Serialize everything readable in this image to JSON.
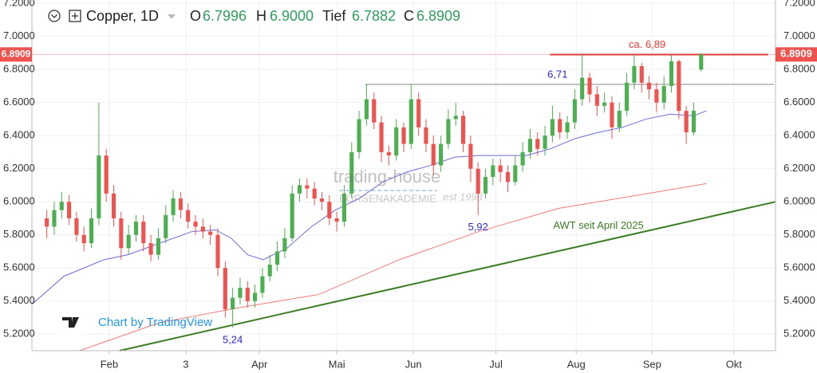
{
  "chart_data": {
    "type": "candlestick",
    "header": {
      "symbol": "Copper, 1D",
      "ohlc_names": [
        "O",
        "H",
        "Tief",
        "C"
      ]
    },
    "last_bar_labels": {
      "open": "6.7996",
      "high": "6.9000",
      "low": "6.7882",
      "close": "6.8909"
    },
    "watermark": {
      "brand": "trading-house",
      "sub": "BÖRSENAKADEMIE",
      "since": "est 1998"
    },
    "credit": "Chart by TradingView",
    "up_color": "#4caf50",
    "down_color": "#ef5350",
    "x": [
      2,
      3,
      4,
      5,
      6,
      7,
      8,
      9,
      10,
      11,
      12,
      13,
      14,
      15,
      16,
      17,
      18,
      19,
      20,
      21,
      22,
      23,
      24,
      25,
      26,
      27,
      28,
      29,
      30,
      31,
      32,
      33,
      34,
      35,
      36,
      37,
      38,
      39,
      40,
      41,
      42,
      43,
      44,
      45,
      46,
      47,
      48,
      49,
      50,
      51,
      52,
      53,
      54,
      55,
      56,
      57,
      58,
      59,
      60,
      61,
      62,
      63,
      64,
      65,
      66,
      67,
      68,
      69,
      70,
      71,
      72,
      73,
      74,
      75,
      76,
      77,
      78,
      79,
      80,
      81,
      82,
      83,
      84,
      85,
      86,
      87,
      88,
      89,
      90
    ],
    "open": [
      5.9,
      5.85,
      5.95,
      6.0,
      5.9,
      5.8,
      5.75,
      5.9,
      6.28,
      6.05,
      5.9,
      5.72,
      5.8,
      5.88,
      5.75,
      5.68,
      5.78,
      5.92,
      6.02,
      5.95,
      5.88,
      5.85,
      5.82,
      5.8,
      5.6,
      5.35,
      5.42,
      5.48,
      5.4,
      5.45,
      5.55,
      5.62,
      5.7,
      5.78,
      6.05,
      6.1,
      6.08,
      6.02,
      6.0,
      5.9,
      5.88,
      6.05,
      6.3,
      6.5,
      6.62,
      6.48,
      6.3,
      6.28,
      6.45,
      6.35,
      6.62,
      6.45,
      6.35,
      6.22,
      6.35,
      6.5,
      6.52,
      6.35,
      6.2,
      6.05,
      6.15,
      6.22,
      6.18,
      6.12,
      6.22,
      6.3,
      6.38,
      6.32,
      6.4,
      6.5,
      6.42,
      6.48,
      6.62,
      6.75,
      6.65,
      6.58,
      6.6,
      6.45,
      6.55,
      6.72,
      6.82,
      6.72,
      6.68,
      6.6,
      6.7,
      6.85,
      6.55,
      6.42,
      6.7996
    ],
    "high": [
      5.95,
      6.0,
      6.06,
      6.04,
      5.94,
      5.85,
      5.96,
      6.6,
      6.32,
      6.1,
      5.94,
      5.86,
      5.92,
      5.92,
      5.8,
      5.84,
      5.98,
      6.07,
      6.06,
      5.99,
      5.92,
      5.9,
      5.86,
      5.84,
      5.64,
      5.48,
      5.54,
      5.52,
      5.5,
      5.6,
      5.68,
      5.76,
      5.84,
      6.1,
      6.14,
      6.14,
      6.12,
      6.06,
      6.04,
      5.94,
      6.1,
      6.36,
      6.55,
      6.71,
      6.66,
      6.52,
      6.34,
      6.5,
      6.48,
      6.71,
      6.66,
      6.5,
      6.4,
      6.4,
      6.56,
      6.6,
      6.55,
      6.4,
      6.24,
      6.2,
      6.26,
      6.26,
      6.22,
      6.28,
      6.36,
      6.44,
      6.42,
      6.46,
      6.58,
      6.54,
      6.52,
      6.68,
      6.89,
      6.78,
      6.7,
      6.66,
      6.64,
      6.6,
      6.78,
      6.89,
      6.84,
      6.76,
      6.72,
      6.76,
      6.89,
      6.86,
      6.58,
      6.6,
      6.9
    ],
    "low": [
      5.78,
      5.8,
      5.9,
      5.86,
      5.76,
      5.7,
      5.72,
      5.86,
      6.0,
      5.85,
      5.65,
      5.68,
      5.76,
      5.7,
      5.64,
      5.65,
      5.75,
      5.88,
      5.9,
      5.84,
      5.8,
      5.78,
      5.74,
      5.55,
      5.3,
      5.24,
      5.38,
      5.36,
      5.36,
      5.42,
      5.52,
      5.58,
      5.66,
      5.76,
      6.0,
      6.02,
      5.98,
      5.95,
      5.86,
      5.82,
      5.85,
      6.02,
      6.26,
      6.46,
      6.44,
      6.24,
      6.22,
      6.25,
      6.3,
      6.32,
      6.4,
      6.3,
      6.16,
      6.18,
      6.32,
      6.46,
      6.3,
      6.12,
      5.92,
      6.02,
      6.1,
      6.12,
      6.06,
      6.1,
      6.18,
      6.26,
      6.28,
      6.28,
      6.36,
      6.38,
      6.38,
      6.44,
      6.58,
      6.6,
      6.52,
      6.54,
      6.38,
      6.42,
      6.52,
      6.68,
      6.66,
      6.62,
      6.54,
      6.56,
      6.66,
      6.5,
      6.35,
      6.4,
      6.7882
    ],
    "close": [
      5.85,
      5.95,
      6.0,
      5.9,
      5.8,
      5.75,
      5.9,
      6.28,
      6.05,
      5.9,
      5.72,
      5.8,
      5.88,
      5.75,
      5.68,
      5.78,
      5.92,
      6.02,
      5.95,
      5.88,
      5.85,
      5.82,
      5.8,
      5.6,
      5.35,
      5.42,
      5.48,
      5.4,
      5.45,
      5.55,
      5.62,
      5.7,
      5.78,
      6.05,
      6.1,
      6.08,
      6.02,
      6.0,
      5.9,
      5.88,
      6.05,
      6.3,
      6.5,
      6.62,
      6.48,
      6.3,
      6.28,
      6.45,
      6.35,
      6.62,
      6.45,
      6.35,
      6.22,
      6.35,
      6.5,
      6.52,
      6.35,
      6.2,
      6.05,
      6.15,
      6.22,
      6.18,
      6.12,
      6.22,
      6.3,
      6.38,
      6.32,
      6.4,
      6.5,
      6.42,
      6.48,
      6.62,
      6.75,
      6.65,
      6.58,
      6.6,
      6.45,
      6.55,
      6.72,
      6.82,
      6.72,
      6.68,
      6.6,
      6.7,
      6.85,
      6.55,
      6.42,
      6.55,
      6.8909
    ],
    "overlays": [
      {
        "color": "#6b6bdc",
        "x": [
          0,
          4.3,
          9.7,
          12.9,
          17.2,
          21.5,
          24.7,
          26.8,
          29,
          31.1,
          34.3,
          37.6,
          40.8,
          44,
          47.2,
          50.4,
          53.6,
          56.9,
          60.1,
          63.3,
          66.5,
          69.7,
          72.9,
          76.2,
          79.4,
          82.6,
          85.8,
          89,
          90.7
        ],
        "values": [
          5.38,
          5.55,
          5.65,
          5.68,
          5.75,
          5.82,
          5.83,
          5.78,
          5.68,
          5.65,
          5.72,
          5.85,
          5.95,
          6.02,
          6.12,
          6.18,
          6.22,
          6.27,
          6.28,
          6.28,
          6.28,
          6.32,
          6.38,
          6.42,
          6.45,
          6.5,
          6.53,
          6.52,
          6.55
        ]
      },
      {
        "color": "#f07a7a",
        "x": [
          6.4,
          17.2,
          27.9,
          38.6,
          49.4,
          60.1,
          70.8,
          81.5,
          90.7
        ],
        "values": [
          5.1,
          5.27,
          5.36,
          5.44,
          5.65,
          5.82,
          5.96,
          6.04,
          6.11
        ]
      }
    ],
    "trendline": {
      "x": [
        11.8,
        100
      ],
      "values": [
        5.1,
        6.0
      ],
      "color": "#3b7d23",
      "label": "AWT seit April 2025"
    },
    "levels": [
      {
        "value": 6.89,
        "x": [
          69.7,
          99
        ],
        "color": "#e53935",
        "label": "ca. 6,89"
      },
      {
        "value": 6.71,
        "x": [
          44.8,
          99.8
        ],
        "color": "#888888",
        "label": "6,71"
      }
    ],
    "annotations": [
      {
        "text": "5,24",
        "x": 27,
        "value": 5.24
      },
      {
        "text": "5,92",
        "x": 60,
        "value": 5.92
      }
    ],
    "xlim": [
      0,
      100
    ],
    "xticks": [
      {
        "value": 10.4,
        "label": "Feb"
      },
      {
        "value": 20.7,
        "label": "3"
      },
      {
        "value": 30.6,
        "label": "Apr"
      },
      {
        "value": 41,
        "label": "Mai"
      },
      {
        "value": 51.3,
        "label": "Jun"
      },
      {
        "value": 62.4,
        "label": "Jul"
      },
      {
        "value": 73.2,
        "label": "Aug"
      },
      {
        "value": 83.4,
        "label": "Sep"
      },
      {
        "value": 94.4,
        "label": "Okt"
      }
    ],
    "ylim": [
      5.1,
      7.22
    ],
    "yticks": [
      {
        "value": 5.2,
        "label": "5.2000"
      },
      {
        "value": 5.4,
        "label": "5.4000"
      },
      {
        "value": 5.6,
        "label": "5.6000"
      },
      {
        "value": 5.8,
        "label": "5.8000"
      },
      {
        "value": 6.0,
        "label": "6.0000"
      },
      {
        "value": 6.2,
        "label": "6.2000"
      },
      {
        "value": 6.4,
        "label": "6.4000"
      },
      {
        "value": 6.6,
        "label": "6.6000"
      },
      {
        "value": 6.8,
        "label": "6.8000"
      },
      {
        "value": 7.0,
        "label": "7.0000"
      },
      {
        "value": 7.2,
        "label": "7.2000"
      }
    ],
    "grid": true
  }
}
